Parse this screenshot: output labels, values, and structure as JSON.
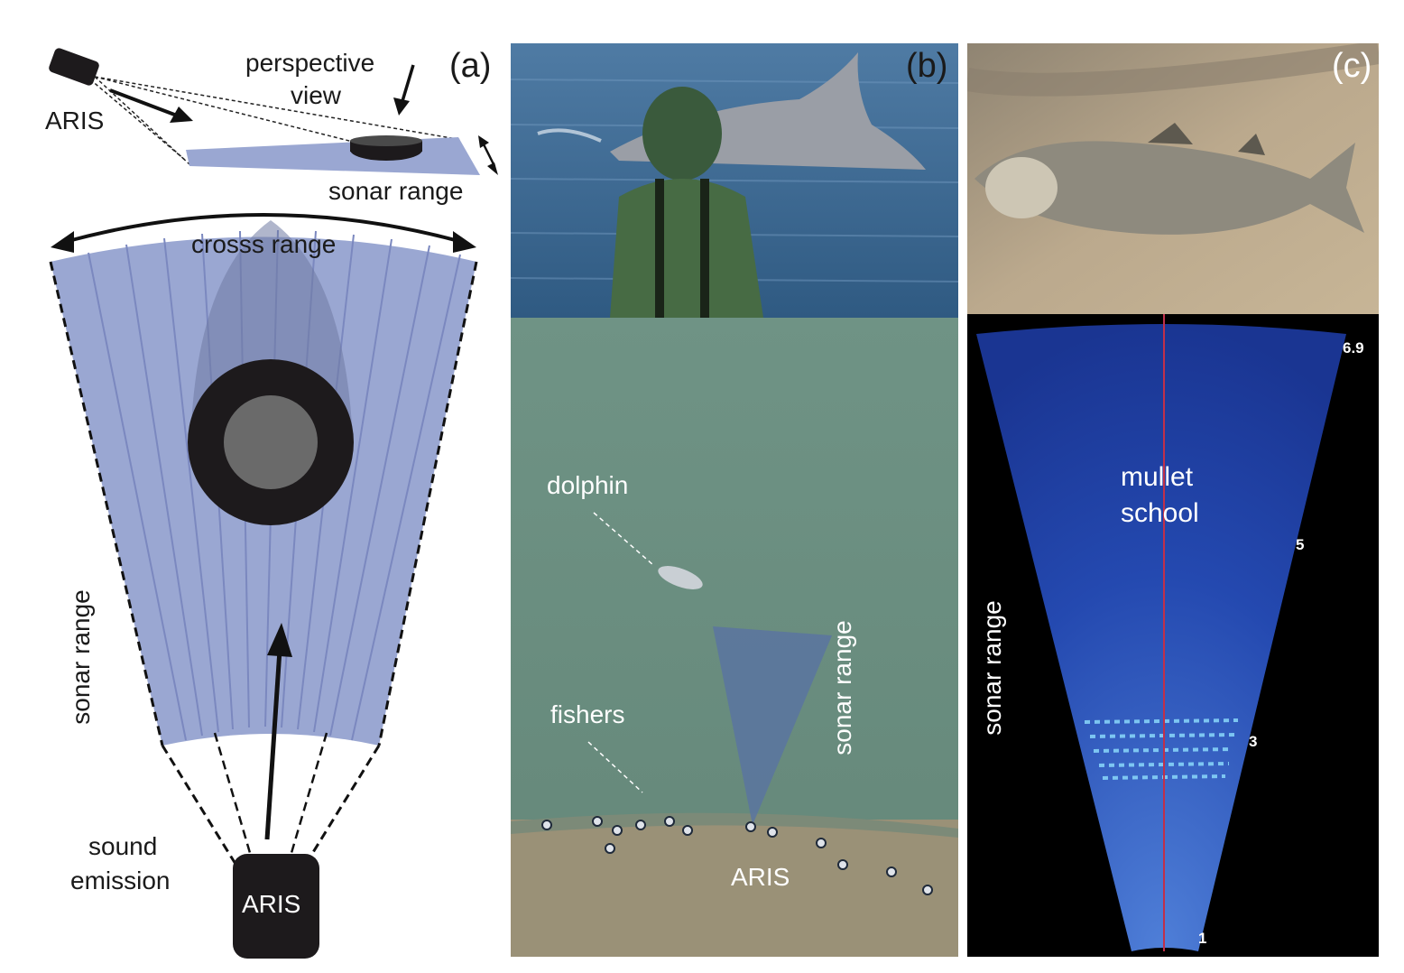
{
  "panel_a": {
    "tag": "(a)",
    "aris_top": "ARIS",
    "perspective_1": "perspective",
    "perspective_2": "view",
    "sonar_range_top": "sonar range",
    "cross_range": "crosss range",
    "sonar_range_side": "sonar range",
    "sound_1": "sound",
    "sound_2": "emission",
    "aris_box": "ARIS",
    "colors": {
      "beam": "#9aa7d2",
      "beam_line": "#7b88bf",
      "object": "#1d1a1c",
      "object_core": "#6a6a6a",
      "shadow": "#6f7aa3"
    }
  },
  "panel_b": {
    "tag": "(b)",
    "dolphin": "dolphin",
    "fishers": "fishers",
    "sonar_range": "sonar range",
    "aris": "ARIS",
    "colors": {
      "sea_photo": "#3e6a92",
      "aerial_water": "#6b8f80",
      "sand": "#9a9177",
      "cone": "#5a74a0"
    }
  },
  "panel_c": {
    "tag": "(c)",
    "mullet_1": "mullet",
    "mullet_2": "school",
    "sonar_range": "sonar range",
    "scale": [
      "6.9",
      "5",
      "3",
      "1"
    ],
    "colors": {
      "sand_photo": "#b9a58a",
      "sonar_fan": "#1a3aa8",
      "background": "#000000",
      "center_line": "#c0304a"
    }
  }
}
